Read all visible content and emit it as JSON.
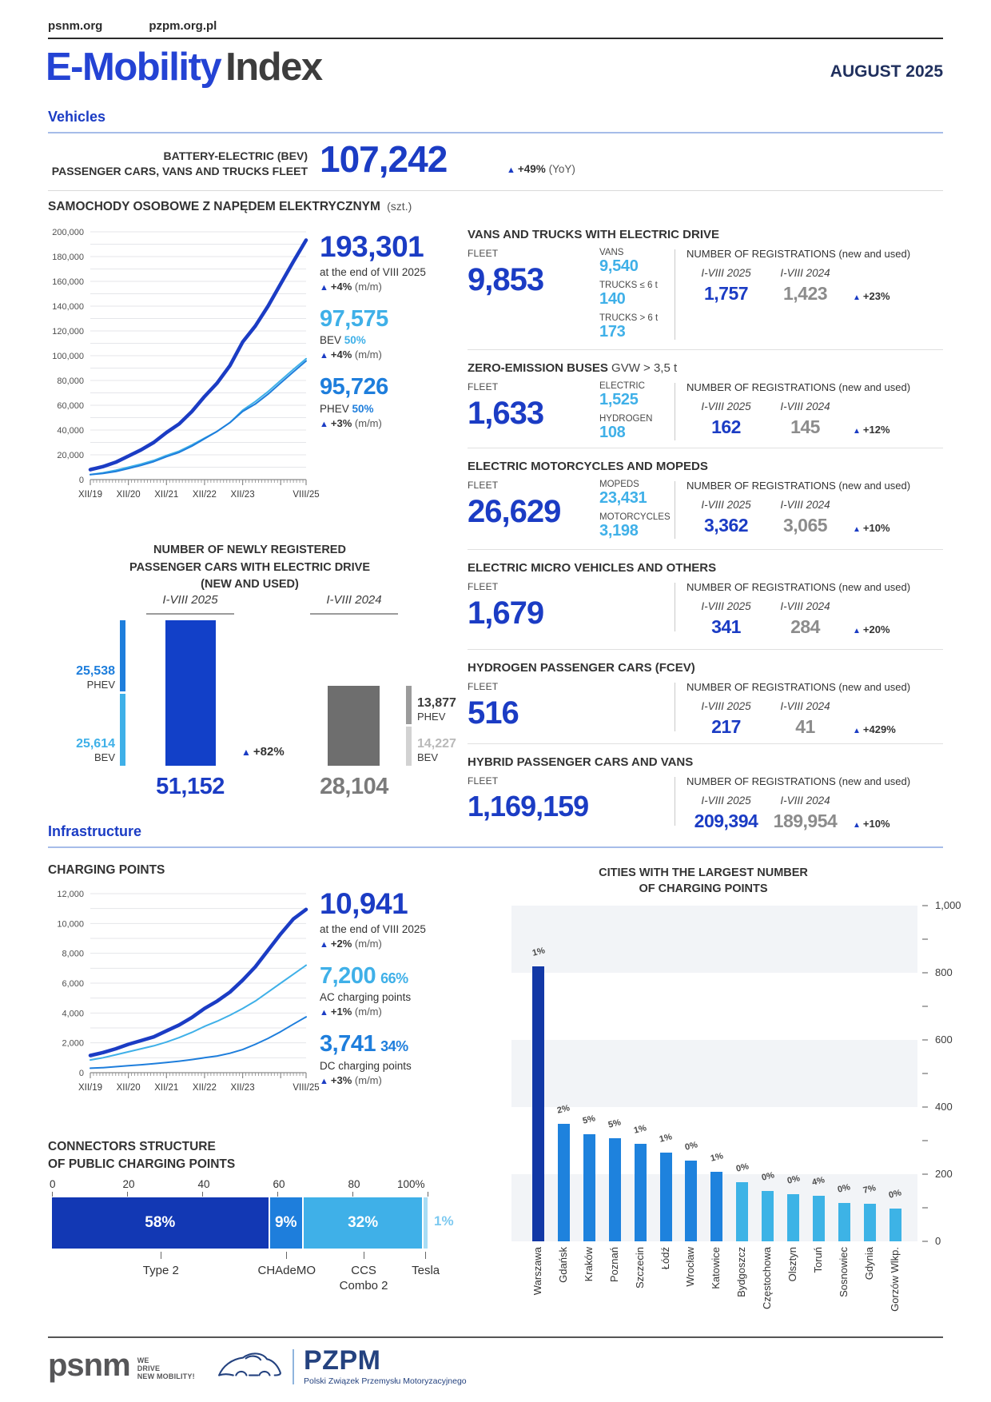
{
  "header": {
    "links": [
      "psnm.org",
      "pzpm.org.pl"
    ],
    "title_accent": "E-Mobility",
    "title_rest": "Index",
    "edition": "AUGUST 2025"
  },
  "section_vehicles": "Vehicles",
  "section_infrastructure": "Infrastructure",
  "bev_summary": {
    "label_line1": "BATTERY-ELECTRIC (BEV)",
    "label_line2": "PASSENGER CARS, VANS AND TRUCKS FLEET",
    "value": "107,242",
    "change": "+49%",
    "change_period": "(YoY)"
  },
  "colors": {
    "primary_blue": "#1B3CC4",
    "bar_blue": "#1240C8",
    "dark_bar_blue": "#1238B4",
    "medium_blue": "#1E7EDC",
    "light_blue": "#3FB0E8",
    "pale_blue": "#A9DDF5",
    "city_dark": "#1238A6",
    "city_medium": "#1E82DD",
    "city_light": "#3DB3E6",
    "gray_bar": "#6E6E6E",
    "gray_mid": "#9B9B9B",
    "gray_light": "#D2D2D2",
    "gray_text": "#7B7B7B",
    "gray_light_text": "#B9B9B9"
  },
  "chart_data": [
    {
      "id": "ev_fleet",
      "type": "line",
      "title": "SAMOCHODY OSOBOWE Z NAPĘDEM ELEKTRYCZNYM",
      "title_suffix": "(szt.)",
      "ylim": [
        0,
        200000
      ],
      "y_label_step": 20000,
      "y_grid_step": 10000,
      "x_tick_labels": [
        "XII/19",
        "XII/20",
        "XII/21",
        "XII/22",
        "XII/23",
        "VIII/25"
      ],
      "x_tick_positions": [
        0,
        12,
        24,
        36,
        48,
        68
      ],
      "x_total_months": 68,
      "series": [
        {
          "name": "TOTAL",
          "color_key": "primary",
          "stroke": 4.5,
          "values": [
            8000,
            10500,
            14000,
            19000,
            24000,
            30000,
            38000,
            45000,
            55000,
            67000,
            78000,
            92000,
            111000,
            124000,
            140000,
            158000,
            176000,
            193301
          ]
        },
        {
          "name": "BEV",
          "color_key": "light",
          "stroke": 2,
          "values": [
            4000,
            5500,
            7500,
            10000,
            12500,
            15500,
            19500,
            23000,
            28000,
            33500,
            39000,
            46000,
            56000,
            63000,
            71000,
            80000,
            89000,
            97575
          ]
        },
        {
          "name": "PHEV",
          "color_key": "medium",
          "stroke": 2,
          "values": [
            4000,
            5000,
            6500,
            9000,
            11500,
            14500,
            18500,
            22000,
            27000,
            33000,
            39000,
            46000,
            55000,
            61000,
            69000,
            78000,
            87000,
            95726
          ]
        }
      ],
      "stats": [
        {
          "value": "193,301",
          "color": "primary",
          "line2_plain": "at the end of VIII 2025",
          "change": "+4%",
          "period": "(m/m)"
        },
        {
          "value": "97,575",
          "color": "light",
          "line2_label": "BEV",
          "line2_share": "50%",
          "change": "+4%",
          "period": "(m/m)"
        },
        {
          "value": "95,726",
          "color": "medium",
          "line2_label": "PHEV",
          "line2_share": "50%",
          "change": "+3%",
          "period": "(m/m)"
        }
      ]
    },
    {
      "id": "newly_registered",
      "type": "bar",
      "title_lines": [
        "NUMBER OF NEWLY REGISTERED",
        "PASSENGER CARS WITH ELECTRIC DRIVE",
        "(NEW AND USED)"
      ],
      "change": "+82%",
      "groups": [
        {
          "label": "I-VIII 2025",
          "total_label": "51,152",
          "total": 51152,
          "segments": [
            {
              "name": "PHEV",
              "label": "25,538",
              "value": 25538
            },
            {
              "name": "BEV",
              "label": "25,614",
              "value": 25614
            }
          ]
        },
        {
          "label": "I-VIII 2024",
          "total_label": "28,104",
          "total": 28104,
          "segments": [
            {
              "name": "PHEV",
              "label": "13,877",
              "value": 13877
            },
            {
              "name": "BEV",
              "label": "14,227",
              "value": 14227
            }
          ]
        }
      ]
    },
    {
      "id": "charging_points",
      "type": "line",
      "title": "CHARGING POINTS",
      "ylim": [
        0,
        12000
      ],
      "y_label_step": 2000,
      "y_grid_step": 1000,
      "x_tick_labels": [
        "XII/19",
        "XII/20",
        "XII/21",
        "XII/22",
        "XII/23",
        "VIII/25"
      ],
      "x_tick_positions": [
        0,
        12,
        24,
        36,
        48,
        68
      ],
      "x_total_months": 68,
      "series": [
        {
          "name": "TOTAL",
          "color_key": "primary",
          "stroke": 4.5,
          "values": [
            1150,
            1350,
            1600,
            1900,
            2150,
            2400,
            2800,
            3200,
            3700,
            4300,
            4800,
            5400,
            6200,
            7100,
            8200,
            9300,
            10300,
            10941
          ]
        },
        {
          "name": "AC",
          "color_key": "light",
          "stroke": 2,
          "values": [
            850,
            1000,
            1200,
            1400,
            1600,
            1800,
            2050,
            2350,
            2700,
            3100,
            3450,
            3850,
            4300,
            4800,
            5400,
            6000,
            6600,
            7200
          ]
        },
        {
          "name": "DC",
          "color_key": "medium",
          "stroke": 2,
          "values": [
            300,
            340,
            400,
            470,
            530,
            600,
            680,
            770,
            880,
            1000,
            1120,
            1300,
            1550,
            1900,
            2300,
            2750,
            3250,
            3741
          ]
        }
      ],
      "stats": [
        {
          "value": "10,941",
          "color": "primary",
          "line2_plain": "at the end of VIII 2025",
          "change": "+2%",
          "period": "(m/m)"
        },
        {
          "value": "7,200",
          "inline_share": "66%",
          "color": "light",
          "line2_plain": "AC charging points",
          "change": "+1%",
          "period": "(m/m)"
        },
        {
          "value": "3,741",
          "inline_share": "34%",
          "color": "medium",
          "line2_plain": "DC charging points",
          "change": "+3%",
          "period": "(m/m)"
        }
      ]
    },
    {
      "id": "connectors",
      "type": "stacked_bar_horizontal",
      "title_lines": [
        "CONNECTORS STRUCTURE",
        "OF PUBLIC CHARGING POINTS"
      ],
      "axis_labels": [
        "0",
        "20",
        "40",
        "60",
        "80",
        "100%"
      ],
      "segments": [
        {
          "name": "Type 2",
          "pct": 58,
          "label": "58%",
          "color": "dark"
        },
        {
          "name": "CHAdeMO",
          "pct": 9,
          "label": "9%",
          "color": "medium"
        },
        {
          "name": "CCS",
          "name_line2": "Combo 2",
          "pct": 32,
          "label": "32%",
          "color": "light"
        },
        {
          "name": "Tesla",
          "pct": 1,
          "label": "1%",
          "color": "pale"
        }
      ]
    },
    {
      "id": "cities",
      "type": "bar",
      "title_lines": [
        "CITIES WITH THE LARGEST NUMBER",
        "OF CHARGING POINTS"
      ],
      "ylim": [
        0,
        1000
      ],
      "y_tick_step": 200,
      "y_minor_step": 100,
      "bars": [
        {
          "city": "Warszawa",
          "value": 820,
          "pct": "1%",
          "color": "dark"
        },
        {
          "city": "Gdańsk",
          "value": 350,
          "pct": "2%",
          "color": "medium"
        },
        {
          "city": "Kraków",
          "value": 320,
          "pct": "5%",
          "color": "medium"
        },
        {
          "city": "Poznań",
          "value": 308,
          "pct": "5%",
          "color": "medium"
        },
        {
          "city": "Szczecin",
          "value": 290,
          "pct": "1%",
          "color": "medium"
        },
        {
          "city": "Łódź",
          "value": 264,
          "pct": "1%",
          "color": "medium"
        },
        {
          "city": "Wrocław",
          "value": 240,
          "pct": "0%",
          "color": "medium"
        },
        {
          "city": "Katowice",
          "value": 206,
          "pct": "1%",
          "color": "medium"
        },
        {
          "city": "Bydgoszcz",
          "value": 176,
          "pct": "0%",
          "color": "light"
        },
        {
          "city": "Częstochowa",
          "value": 150,
          "pct": "0%",
          "color": "light"
        },
        {
          "city": "Olsztyn",
          "value": 141,
          "pct": "0%",
          "color": "light"
        },
        {
          "city": "Toruń",
          "value": 136,
          "pct": "4%",
          "color": "light"
        },
        {
          "city": "Sosnowiec",
          "value": 115,
          "pct": "0%",
          "color": "light"
        },
        {
          "city": "Gdynia",
          "value": 113,
          "pct": "7%",
          "color": "light"
        },
        {
          "city": "Gorzów Wlkp.",
          "value": 98,
          "pct": "0%",
          "color": "light"
        }
      ]
    }
  ],
  "vehicle_blocks": [
    {
      "title": "VANS AND TRUCKS WITH ELECTRIC DRIVE",
      "title_note": "",
      "fleet_label": "FLEET",
      "fleet": "9,853",
      "subs": [
        {
          "label": "VANS",
          "value": "9,540"
        },
        {
          "label": "TRUCKS ≤ 6 t",
          "value": "140"
        },
        {
          "label": "TRUCKS > 6 t",
          "value": "173"
        }
      ],
      "reg_title": "NUMBER OF REGISTRATIONS (new and used)",
      "y2025_label": "I-VIII 2025",
      "y2024_label": "I-VIII 2024",
      "reg_2025": "1,757",
      "reg_2024": "1,423",
      "change": "+23%"
    },
    {
      "title": "ZERO-EMISSION BUSES",
      "title_note": "GVW > 3,5 t",
      "fleet_label": "FLEET",
      "fleet": "1,633",
      "subs": [
        {
          "label": "ELECTRIC",
          "value": "1,525"
        },
        {
          "label": "HYDROGEN",
          "value": "108"
        }
      ],
      "reg_title": "NUMBER OF REGISTRATIONS (new and used)",
      "y2025_label": "I-VIII 2025",
      "y2024_label": "I-VIII 2024",
      "reg_2025": "162",
      "reg_2024": "145",
      "change": "+12%"
    },
    {
      "title": "ELECTRIC MOTORCYCLES AND MOPEDS",
      "title_note": "",
      "fleet_label": "FLEET",
      "fleet": "26,629",
      "subs": [
        {
          "label": "MOPEDS",
          "value": "23,431"
        },
        {
          "label": "MOTORCYCLES",
          "value": "3,198"
        }
      ],
      "reg_title": "NUMBER OF REGISTRATIONS (new and used)",
      "y2025_label": "I-VIII 2025",
      "y2024_label": "I-VIII 2024",
      "reg_2025": "3,362",
      "reg_2024": "3,065",
      "change": "+10%"
    },
    {
      "title": "ELECTRIC MICRO VEHICLES AND OTHERS",
      "title_note": "",
      "fleet_label": "FLEET",
      "fleet": "1,679",
      "subs": [],
      "reg_title": "NUMBER OF REGISTRATIONS (new and used)",
      "y2025_label": "I-VIII 2025",
      "y2024_label": "I-VIII 2024",
      "reg_2025": "341",
      "reg_2024": "284",
      "change": "+20%"
    },
    {
      "title": "HYDROGEN PASSENGER CARS (FCEV)",
      "title_note": "",
      "fleet_label": "FLEET",
      "fleet": "516",
      "subs": [],
      "reg_title": "NUMBER OF REGISTRATIONS (new and used)",
      "y2025_label": "I-VIII 2025",
      "y2024_label": "I-VIII 2024",
      "reg_2025": "217",
      "reg_2024": "41",
      "change": "+429%"
    },
    {
      "title": "HYBRID PASSENGER CARS AND VANS",
      "title_note": "",
      "fleet_label": "FLEET",
      "fleet": "1,169,159",
      "subs": [],
      "reg_title": "NUMBER OF REGISTRATIONS (new and used)",
      "y2025_label": "I-VIII 2025",
      "y2024_label": "I-VIII 2024",
      "reg_2025": "209,394",
      "reg_2024": "189,954",
      "change": "+10%"
    }
  ],
  "footer": {
    "psnm_logo": "psnm",
    "psnm_tagline": [
      "WE",
      "DRIVE",
      "NEW MOBILITY!"
    ],
    "pzpm_logo": "PZPM",
    "pzpm_subtitle": "Polski Związek Przemysłu Motoryzacyjnego"
  }
}
